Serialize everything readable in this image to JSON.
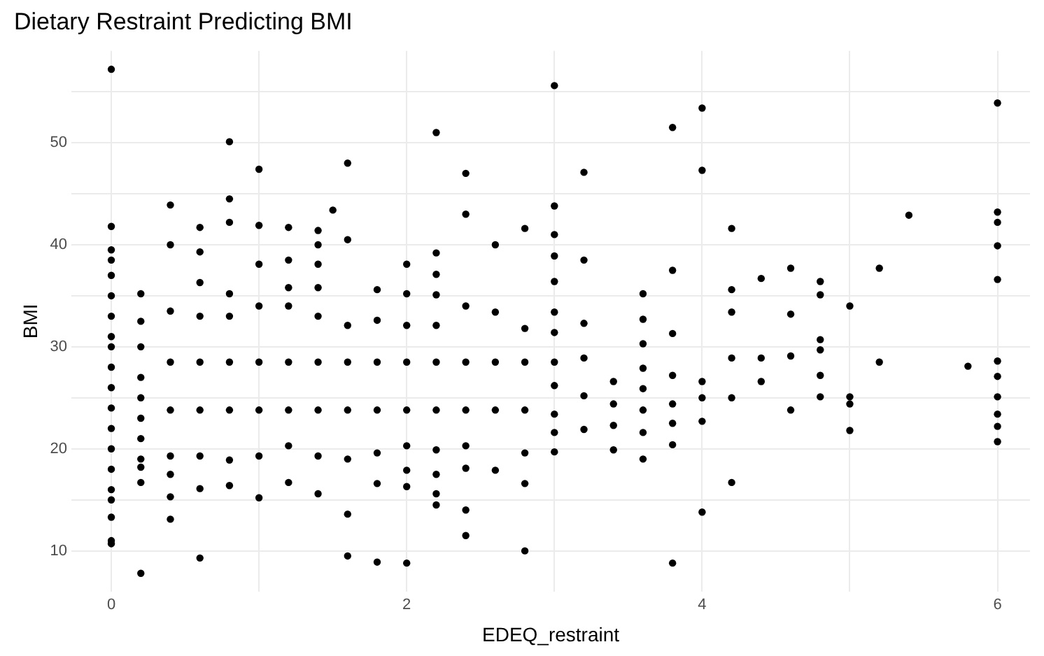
{
  "chart_data": {
    "type": "scatter",
    "title": "Dietary Restraint Predicting BMI",
    "xlabel": "EDEQ_restraint",
    "ylabel": "BMI",
    "color": "#000000",
    "marker": "circle",
    "grid": true,
    "legend": false,
    "xlim": [
      -0.27,
      6.22
    ],
    "ylim": [
      6,
      59
    ],
    "xticks": [
      0,
      {
        "value": 1,
        "label": null
      },
      2,
      {
        "value": 3,
        "label": null
      },
      4,
      {
        "value": 5,
        "label": null
      },
      6
    ],
    "yticks": [
      10,
      {
        "value": 15,
        "label": null
      },
      20,
      {
        "value": 25,
        "label": null
      },
      30,
      {
        "value": 35,
        "label": null
      },
      40,
      {
        "value": 45,
        "label": null
      },
      50,
      {
        "value": 55,
        "label": null
      }
    ],
    "x": [
      0,
      0,
      0,
      0,
      0,
      0,
      0,
      0,
      0,
      0,
      0,
      0,
      0,
      0,
      0,
      0,
      0,
      0,
      0,
      0,
      0.2,
      0.2,
      0.2,
      0.2,
      0.2,
      0.2,
      0.2,
      0.2,
      0.2,
      0.2,
      0.2,
      0.4,
      0.4,
      0.4,
      0.4,
      0.4,
      0.4,
      0.4,
      0.4,
      0.4,
      0.6,
      0.6,
      0.6,
      0.6,
      0.6,
      0.6,
      0.6,
      0.6,
      0.6,
      0.8,
      0.8,
      0.8,
      0.8,
      0.8,
      0.8,
      0.8,
      0.8,
      0.8,
      1.0,
      1.0,
      1.0,
      1.0,
      1.0,
      1.0,
      1.0,
      1.0,
      1.2,
      1.2,
      1.2,
      1.2,
      1.2,
      1.2,
      1.2,
      1.2,
      1.4,
      1.4,
      1.4,
      1.4,
      1.4,
      1.4,
      1.4,
      1.4,
      1.4,
      1.5,
      1.6,
      1.6,
      1.6,
      1.6,
      1.6,
      1.6,
      1.6,
      1.6,
      1.8,
      1.8,
      1.8,
      1.8,
      1.8,
      1.8,
      1.8,
      2.0,
      2.0,
      2.0,
      2.0,
      2.0,
      2.0,
      2.0,
      2.0,
      2.0,
      2.2,
      2.2,
      2.2,
      2.2,
      2.2,
      2.2,
      2.2,
      2.2,
      2.2,
      2.2,
      2.2,
      2.4,
      2.4,
      2.4,
      2.4,
      2.4,
      2.4,
      2.4,
      2.4,
      2.4,
      2.6,
      2.6,
      2.6,
      2.6,
      2.6,
      2.8,
      2.8,
      2.8,
      2.8,
      2.8,
      2.8,
      2.8,
      3.0,
      3.0,
      3.0,
      3.0,
      3.0,
      3.0,
      3.0,
      3.0,
      3.0,
      3.0,
      3.0,
      3.0,
      3.2,
      3.2,
      3.2,
      3.2,
      3.2,
      3.2,
      3.4,
      3.4,
      3.4,
      3.4,
      3.6,
      3.6,
      3.6,
      3.6,
      3.6,
      3.6,
      3.6,
      3.6,
      3.8,
      3.8,
      3.8,
      3.8,
      3.8,
      3.8,
      3.8,
      3.8,
      4.0,
      4.0,
      4.0,
      4.0,
      4.0,
      4.0,
      4.2,
      4.2,
      4.2,
      4.2,
      4.2,
      4.2,
      4.4,
      4.4,
      4.4,
      4.6,
      4.6,
      4.6,
      4.6,
      4.8,
      4.8,
      4.8,
      4.8,
      4.8,
      4.8,
      5.0,
      5.0,
      5.0,
      5.0,
      5.2,
      5.2,
      5.4,
      5.8,
      6.0,
      6.0,
      6.0,
      6.0,
      6.0,
      6.0,
      6.0,
      6.0,
      6.0,
      6.0,
      6.0
    ],
    "values": [
      57.2,
      41.8,
      39.5,
      38.5,
      37,
      35,
      33,
      31,
      30,
      28,
      26,
      24,
      22,
      20,
      18,
      16,
      15,
      13.3,
      11,
      10.7,
      35.2,
      32.5,
      30,
      27,
      25,
      23,
      21,
      19,
      18.2,
      16.7,
      7.8,
      43.9,
      40.0,
      33.5,
      28.5,
      23.8,
      19.3,
      17.5,
      15.3,
      13.1,
      41.7,
      39.3,
      36.3,
      33.0,
      28.5,
      23.8,
      19.3,
      16.1,
      9.3,
      50.1,
      44.5,
      42.2,
      35.2,
      33.0,
      28.5,
      23.8,
      18.9,
      16.4,
      47.4,
      41.9,
      38.1,
      34.0,
      28.5,
      23.8,
      19.3,
      15.2,
      41.7,
      38.5,
      35.8,
      34.0,
      28.5,
      23.8,
      20.3,
      16.7,
      41.4,
      40.0,
      38.1,
      35.8,
      33.0,
      28.5,
      23.8,
      19.3,
      15.6,
      43.4,
      48.0,
      40.5,
      32.1,
      28.5,
      23.8,
      19.0,
      13.6,
      9.5,
      35.6,
      32.6,
      28.5,
      23.8,
      19.6,
      16.6,
      8.9,
      38.1,
      35.2,
      32.1,
      28.5,
      23.8,
      20.3,
      17.9,
      16.3,
      8.8,
      51.0,
      39.2,
      37.1,
      35.1,
      32.1,
      28.5,
      23.8,
      19.9,
      17.5,
      15.6,
      14.5,
      47.0,
      43.0,
      34.0,
      28.5,
      23.8,
      20.3,
      18.1,
      14.0,
      11.5,
      40.0,
      33.4,
      28.5,
      23.8,
      17.9,
      41.6,
      31.8,
      28.5,
      23.8,
      19.6,
      16.6,
      10.0,
      55.6,
      43.8,
      41.0,
      38.9,
      36.4,
      33.4,
      31.4,
      28.5,
      26.2,
      23.4,
      21.6,
      19.7,
      47.1,
      38.5,
      32.3,
      28.9,
      25.2,
      21.9,
      26.6,
      24.4,
      22.3,
      19.9,
      35.2,
      32.7,
      30.3,
      27.9,
      25.9,
      23.8,
      21.6,
      19.0,
      51.5,
      37.5,
      31.3,
      27.2,
      24.4,
      22.5,
      20.4,
      8.8,
      53.4,
      47.3,
      26.6,
      25.0,
      22.7,
      13.8,
      41.6,
      35.6,
      33.4,
      28.9,
      25.0,
      16.7,
      36.7,
      28.9,
      26.6,
      37.7,
      33.2,
      29.1,
      23.8,
      36.4,
      35.1,
      30.7,
      29.7,
      27.2,
      25.1,
      34.0,
      25.1,
      24.4,
      21.8,
      37.7,
      28.5,
      42.9,
      28.1,
      53.9,
      43.2,
      42.2,
      39.9,
      36.6,
      28.6,
      27.1,
      25.1,
      23.4,
      22.2,
      20.7
    ]
  }
}
